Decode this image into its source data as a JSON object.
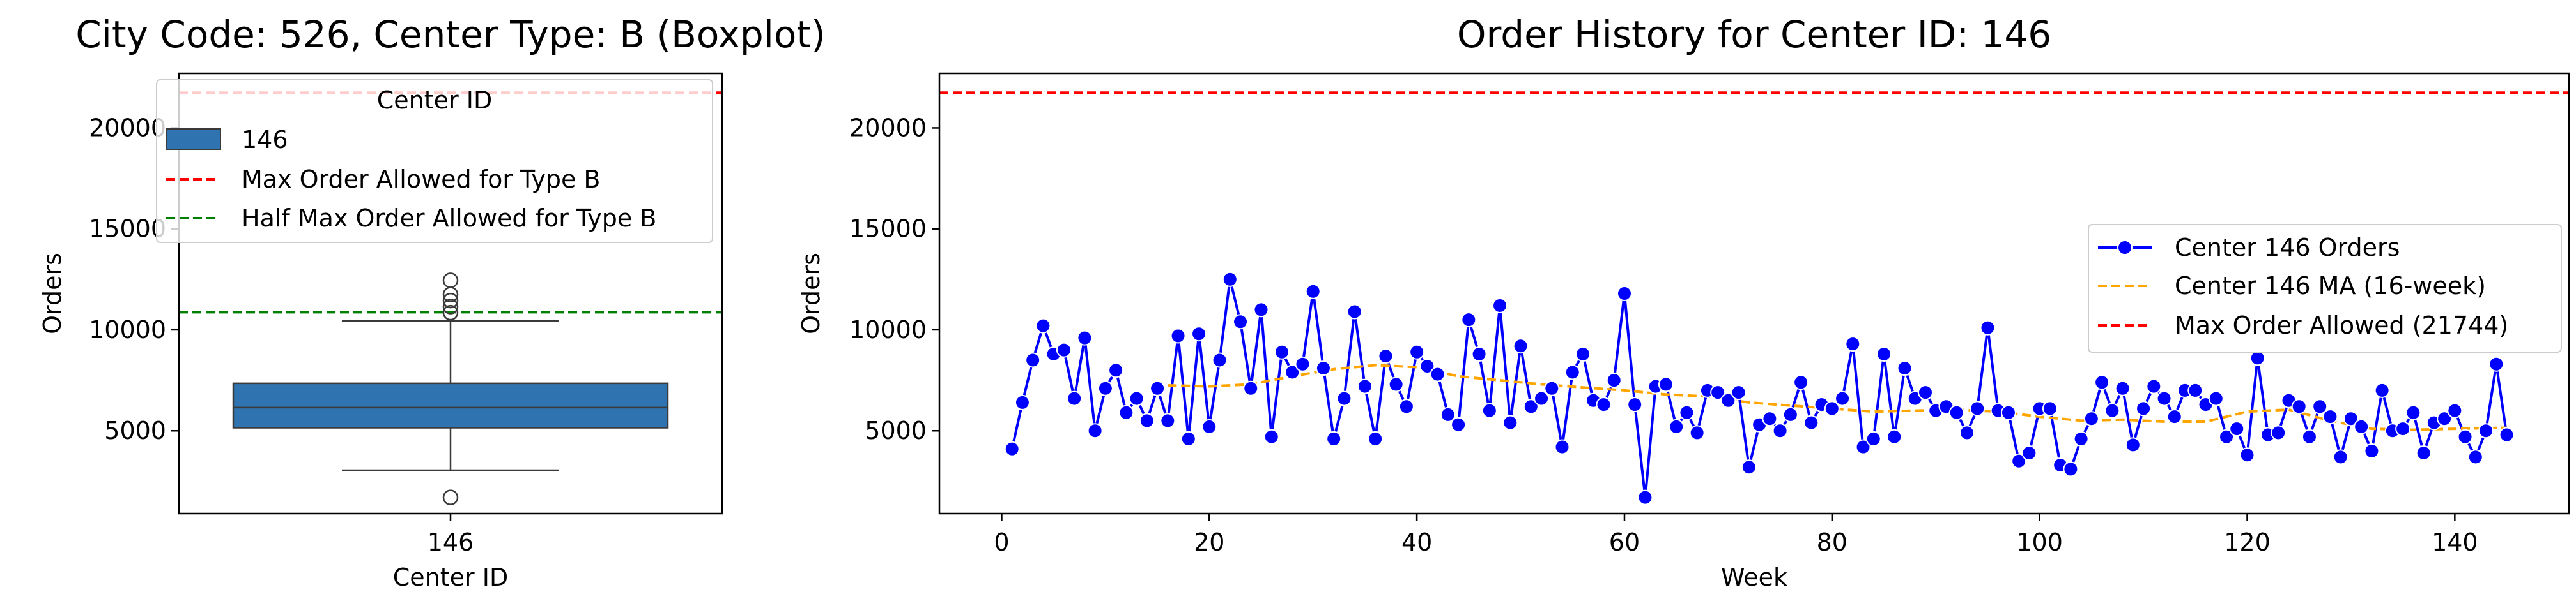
{
  "chart_data": [
    {
      "type": "boxplot",
      "title": "City Code: 526, Center Type: B (Boxplot)",
      "xlabel": "Center ID",
      "ylabel": "Orders",
      "categories": [
        "146"
      ],
      "ylim": [
        900,
        22700
      ],
      "yticks": [
        5000,
        10000,
        15000,
        20000
      ],
      "box": {
        "q1": 5150,
        "median": 6150,
        "q3": 7350,
        "whisker_low": 3050,
        "whisker_high": 10450,
        "fill": "#2f74b1"
      },
      "outliers": [
        1700,
        10850,
        11150,
        11450,
        11750,
        12450
      ],
      "hlines": [
        {
          "label": "Max Order Allowed for Type B",
          "value": 21744,
          "color": "#ff0000",
          "style": "dashed"
        },
        {
          "label": "Half Max Order Allowed for Type B",
          "value": 10872,
          "color": "#008000",
          "style": "dashed"
        }
      ],
      "legend": {
        "title": "Center ID",
        "placement": "upper-left",
        "entries": [
          {
            "label": "146",
            "kind": "patch",
            "color": "#2f74b1"
          },
          {
            "label": "Max Order Allowed for Type B",
            "kind": "line",
            "color": "#ff0000"
          },
          {
            "label": "Half Max Order Allowed for Type B",
            "kind": "line",
            "color": "#008000"
          }
        ]
      },
      "grid": false
    },
    {
      "type": "line",
      "title": "Order History for Center ID: 146",
      "xlabel": "Week",
      "ylabel": "Orders",
      "xlim": [
        -6,
        151
      ],
      "ylim": [
        900,
        22700
      ],
      "xticks": [
        0,
        20,
        40,
        60,
        80,
        100,
        120,
        140
      ],
      "yticks": [
        5000,
        10000,
        15000,
        20000
      ],
      "series": [
        {
          "name": "Center 146 Orders",
          "color": "#0000ff",
          "marker": "circle",
          "x": [
            1,
            2,
            3,
            4,
            5,
            6,
            7,
            8,
            9,
            10,
            11,
            12,
            13,
            14,
            15,
            16,
            17,
            18,
            19,
            20,
            21,
            22,
            23,
            24,
            25,
            26,
            27,
            28,
            29,
            30,
            31,
            32,
            33,
            34,
            35,
            36,
            37,
            38,
            39,
            40,
            41,
            42,
            43,
            44,
            45,
            46,
            47,
            48,
            49,
            50,
            51,
            52,
            53,
            54,
            55,
            56,
            57,
            58,
            59,
            60,
            61,
            62,
            63,
            64,
            65,
            66,
            67,
            68,
            69,
            70,
            71,
            72,
            73,
            74,
            75,
            76,
            77,
            78,
            79,
            80,
            81,
            82,
            83,
            84,
            85,
            86,
            87,
            88,
            89,
            90,
            91,
            92,
            93,
            94,
            95,
            96,
            97,
            98,
            99,
            100,
            101,
            102,
            103,
            104,
            105,
            106,
            107,
            108,
            109,
            110,
            111,
            112,
            113,
            114,
            115,
            116,
            117,
            118,
            119,
            120,
            121,
            122,
            123,
            124,
            125,
            126,
            127,
            128,
            129,
            130,
            131,
            132,
            133,
            134,
            135,
            136,
            137,
            138,
            139,
            140,
            141,
            142,
            143,
            144,
            145
          ],
          "y": [
            4100,
            6400,
            8500,
            10200,
            8800,
            9000,
            6600,
            9600,
            5000,
            7100,
            8000,
            5900,
            6600,
            5500,
            7100,
            5500,
            9700,
            4600,
            9800,
            5200,
            8500,
            12500,
            10400,
            7100,
            11000,
            4700,
            8900,
            7900,
            8300,
            11900,
            8100,
            4600,
            6600,
            10900,
            7200,
            4600,
            8700,
            7300,
            6200,
            8900,
            8200,
            7800,
            5800,
            5300,
            10500,
            8800,
            6000,
            11200,
            5400,
            9200,
            6200,
            6600,
            7100,
            4200,
            7900,
            8800,
            6500,
            6300,
            7500,
            11800,
            6300,
            1700,
            7200,
            7300,
            5200,
            5900,
            4900,
            7000,
            6900,
            6500,
            6900,
            3200,
            5300,
            5600,
            5000,
            5800,
            7400,
            5400,
            6300,
            6100,
            6600,
            9300,
            4200,
            4600,
            8800,
            4700,
            8100,
            6600,
            6900,
            6000,
            6200,
            5900,
            4900,
            6100,
            10100,
            6000,
            5900,
            3500,
            3900,
            6100,
            6100,
            3300,
            3100,
            4600,
            5600,
            7400,
            6000,
            7100,
            4300,
            6100,
            7200,
            6600,
            5700,
            7000,
            7000,
            6300,
            6600,
            4700,
            5100,
            3800,
            8600,
            4800,
            4900,
            6500,
            6200,
            4700,
            6200,
            5700,
            3700,
            5600,
            5200,
            4000,
            7000,
            5000,
            5100,
            5900,
            3900,
            5400,
            5600,
            6000,
            4700,
            3700,
            5000,
            8300,
            4800
          ]
        },
        {
          "name": "Center 146 MA (16-week)",
          "color": "#ffa500",
          "style": "dashed",
          "x": [
            16,
            20,
            24,
            28,
            32,
            36,
            40,
            44,
            48,
            52,
            56,
            60,
            64,
            68,
            72,
            76,
            80,
            84,
            88,
            92,
            96,
            100,
            104,
            108,
            112,
            116,
            120,
            124,
            128,
            132,
            136,
            140,
            145
          ],
          "y": [
            7250,
            7200,
            7300,
            7700,
            8050,
            8250,
            8150,
            7700,
            7500,
            7300,
            7150,
            7000,
            6800,
            6700,
            6400,
            6250,
            6100,
            5950,
            6000,
            6050,
            5950,
            5700,
            5500,
            5550,
            5450,
            5450,
            5950,
            6050,
            5500,
            5100,
            5050,
            5100,
            5150
          ]
        }
      ],
      "hlines": [
        {
          "label": "Max Order Allowed (21744)",
          "value": 21744,
          "color": "#ff0000",
          "style": "dashed"
        }
      ],
      "legend": {
        "placement": "center-right"
      },
      "grid": false
    }
  ]
}
